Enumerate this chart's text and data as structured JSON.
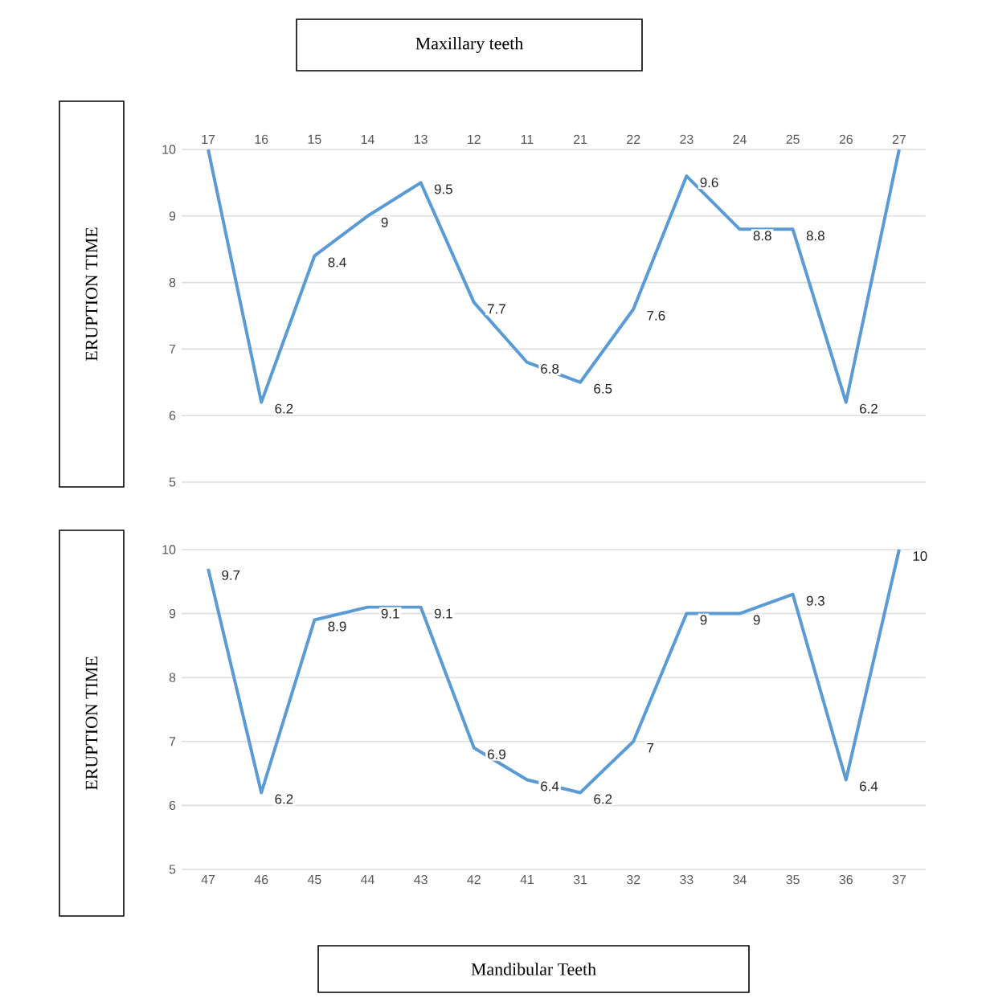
{
  "chart_data": [
    {
      "type": "line",
      "title": "Maxillary teeth",
      "ylabel": "ERUPTION TIME",
      "categories": [
        "17",
        "16",
        "15",
        "14",
        "13",
        "12",
        "11",
        "21",
        "22",
        "23",
        "24",
        "25",
        "26",
        "27"
      ],
      "series": [
        {
          "color": "#5b9bd5",
          "values": [
            10,
            6.2,
            8.4,
            9,
            9.5,
            7.7,
            6.8,
            6.5,
            7.6,
            9.6,
            8.8,
            8.8,
            6.2,
            10
          ],
          "value_labels": [
            null,
            "6.2",
            "8.4",
            "9",
            "9.5",
            "7.7",
            "6.8",
            "6.5",
            "7.6",
            "9.6",
            "8.8",
            "8.8",
            "6.2",
            null
          ]
        }
      ],
      "ylim": [
        5,
        10
      ],
      "yticks": [
        5,
        6,
        7,
        8,
        9,
        10
      ],
      "grid": "y",
      "marker": "none",
      "line_style": "solid"
    },
    {
      "type": "line",
      "title": "Mandibular Teeth",
      "ylabel": "ERUPTION TIME",
      "categories": [
        "47",
        "46",
        "45",
        "44",
        "43",
        "42",
        "41",
        "31",
        "32",
        "33",
        "34",
        "35",
        "36",
        "37"
      ],
      "series": [
        {
          "color": "#5b9bd5",
          "values": [
            9.7,
            6.2,
            8.9,
            9.1,
            9.1,
            6.9,
            6.4,
            6.2,
            7,
            9,
            9,
            9.3,
            6.4,
            10
          ],
          "value_labels": [
            "9.7",
            "6.2",
            "8.9",
            "9.1",
            "9.1",
            "6.9",
            "6.4",
            "6.2",
            "7",
            "9",
            "9",
            "9.3",
            "6.4",
            "10"
          ]
        }
      ],
      "ylim": [
        5,
        10
      ],
      "yticks": [
        5,
        6,
        7,
        8,
        9,
        10
      ],
      "grid": "y",
      "marker": "none",
      "line_style": "solid"
    }
  ]
}
